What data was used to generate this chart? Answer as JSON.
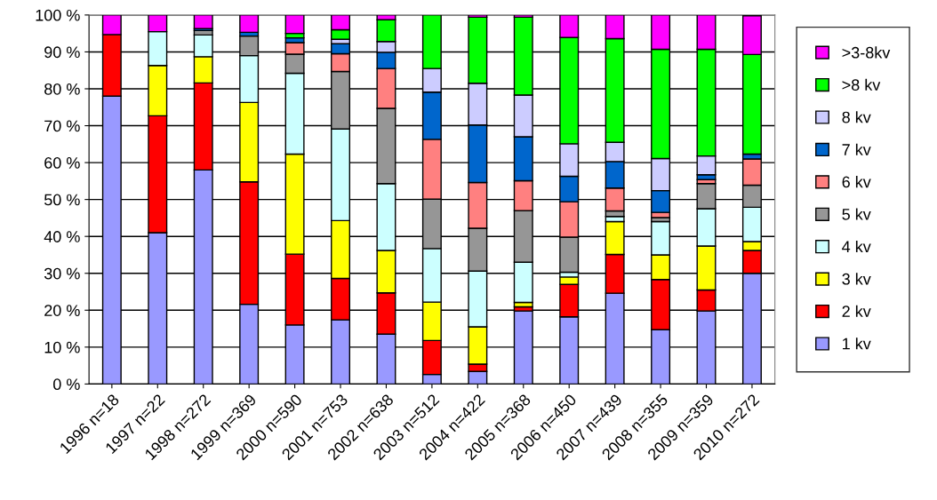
{
  "chart_data": {
    "type": "bar",
    "stacked": true,
    "categories": [
      "1996 n=18",
      "1997 n=22",
      "1998 n=272",
      "1999 n=369",
      "2000 n=590",
      "2001 n=753",
      "2002 n=638",
      "2003 n=512",
      "2004 n=422",
      "2005 n=368",
      "2006 n=450",
      "2007 n=439",
      "2008 n=355",
      "2009 n=359",
      "2010 n=272"
    ],
    "series": [
      {
        "name": "1 kv",
        "color": "#9999ff",
        "values": [
          78,
          41,
          58,
          21.6,
          16,
          17.4,
          13.5,
          2.6,
          3.4,
          19.8,
          18.2,
          24.6,
          14.7,
          19.8,
          30.0
        ]
      },
      {
        "name": "2 kv",
        "color": "#ff0000",
        "values": [
          16.7,
          31.7,
          23.6,
          33.2,
          19.2,
          11.2,
          11.2,
          9.2,
          2.0,
          1.1,
          8.8,
          10.5,
          13.6,
          5.7,
          6.2
        ]
      },
      {
        "name": "3 kv",
        "color": "#ffff00",
        "values": [
          null,
          13.6,
          7.1,
          21.5,
          27.1,
          15.7,
          11.5,
          10.4,
          10.1,
          1.2,
          2.0,
          8.9,
          6.7,
          11.9,
          2.4
        ]
      },
      {
        "name": "4 kv",
        "color": "#ccffff",
        "values": [
          null,
          9.2,
          5.9,
          12.7,
          21.9,
          24.8,
          18.1,
          14.5,
          15.1,
          10.9,
          1.3,
          1.4,
          9.0,
          10.1,
          9.3
        ]
      },
      {
        "name": "5 kv",
        "color": "#969696",
        "values": [
          null,
          null,
          1.2,
          5.3,
          5.2,
          15.6,
          20.4,
          13.4,
          11.6,
          14.0,
          9.5,
          1.5,
          1.1,
          6.8,
          6.0
        ]
      },
      {
        "name": "6 kv",
        "color": "#ff8080",
        "values": [
          null,
          null,
          null,
          null,
          3.1,
          4.8,
          10.8,
          16.2,
          12.4,
          8.1,
          9.6,
          6.2,
          1.4,
          1.1,
          7.1
        ]
      },
      {
        "name": "7 kv",
        "color": "#0066cc",
        "values": [
          null,
          null,
          0.5,
          1.0,
          1.3,
          2.7,
          4.4,
          12.8,
          15.6,
          11.9,
          6.9,
          7.2,
          5.9,
          1.3,
          1.3
        ]
      },
      {
        "name": "8 kv",
        "color": "#ccccff",
        "values": [
          null,
          null,
          null,
          null,
          null,
          1.2,
          2.9,
          6.4,
          11.3,
          11.3,
          8.8,
          5.2,
          8.7,
          5.1,
          null
        ]
      },
      {
        "name": ">8 kv",
        "color": "#00ff00",
        "values": [
          null,
          null,
          null,
          null,
          1.2,
          2.6,
          5.9,
          14.5,
          17.9,
          21.1,
          28.8,
          28.1,
          29.6,
          28.9,
          27.0
        ]
      },
      {
        "name": ">3-8kv",
        "color": "#ff00ff",
        "values": [
          5.3,
          4.5,
          3.7,
          4.7,
          5,
          4.0,
          1.3,
          null,
          0.6,
          0.6,
          6.1,
          6.4,
          9.3,
          9.3,
          10.5
        ]
      }
    ],
    "ylim": [
      0,
      100
    ],
    "yticks": [
      {
        "value": 0,
        "label": "0 %"
      },
      {
        "value": 10,
        "label": "10 %"
      },
      {
        "value": 20,
        "label": "20 %"
      },
      {
        "value": 30,
        "label": "30 %"
      },
      {
        "value": 40,
        "label": "40 %"
      },
      {
        "value": 50,
        "label": "50 %"
      },
      {
        "value": 60,
        "label": "60 %"
      },
      {
        "value": 70,
        "label": "70 %"
      },
      {
        "value": 80,
        "label": "80 %"
      },
      {
        "value": 90,
        "label": "90 %"
      },
      {
        "value": 100,
        "label": "100 %"
      }
    ],
    "grid": "y",
    "legend": "right"
  }
}
